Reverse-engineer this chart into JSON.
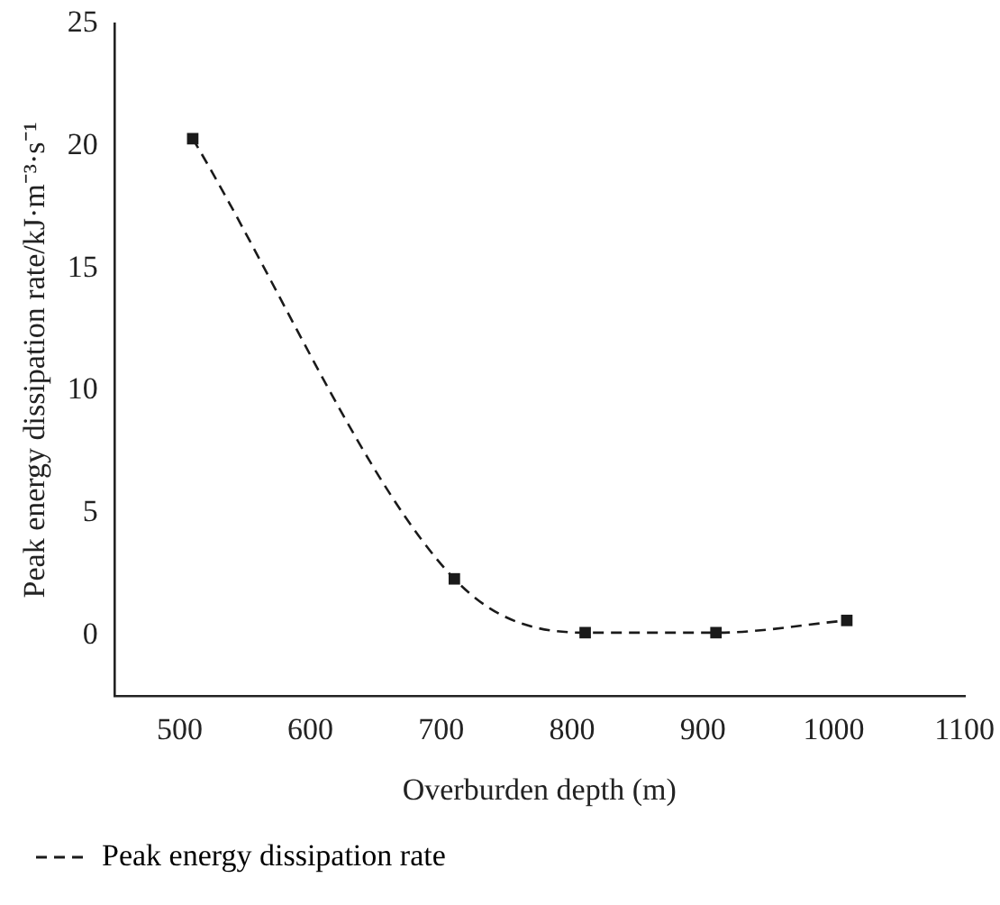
{
  "chart_data": {
    "type": "line",
    "xlabel": "Overburden depth (m)",
    "ylabel": "Peak energy dissipation rate/kJ·m⁻³·s⁻¹",
    "x": [
      510,
      710,
      810,
      910,
      1010
    ],
    "series": [
      {
        "name": "Peak energy dissipation rate",
        "color": "#1a1a1a",
        "values": [
          20.3,
          2.3,
          0.1,
          0.1,
          0.6
        ]
      }
    ],
    "xlim": [
      450,
      1100
    ],
    "xticks": [
      500,
      600,
      700,
      800,
      900,
      1000,
      1100
    ],
    "ylim": [
      -2.5,
      25
    ],
    "yticks": [
      0,
      5,
      10,
      15,
      20,
      25
    ],
    "legend": "bottom left",
    "marker": "square",
    "line_style": "dashed"
  }
}
